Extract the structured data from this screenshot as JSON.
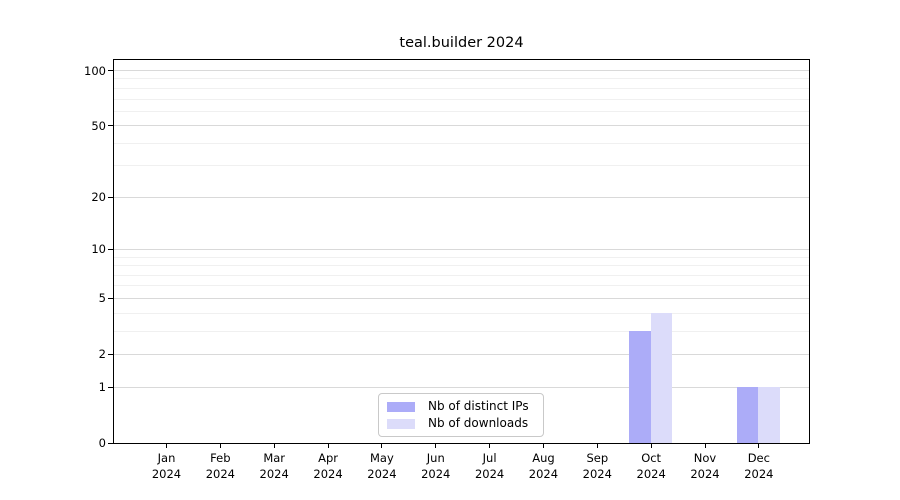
{
  "chart_data": {
    "type": "bar",
    "title": "teal.builder 2024",
    "categories": [
      "Jan 2024",
      "Feb 2024",
      "Mar 2024",
      "Apr 2024",
      "May 2024",
      "Jun 2024",
      "Jul 2024",
      "Aug 2024",
      "Sep 2024",
      "Oct 2024",
      "Nov 2024",
      "Dec 2024"
    ],
    "series": [
      {
        "name": "Nb of distinct IPs",
        "color": "#acacf8",
        "values": [
          0,
          0,
          0,
          0,
          0,
          0,
          0,
          0,
          0,
          3,
          0,
          1
        ]
      },
      {
        "name": "Nb of downloads",
        "color": "#dcdcfa",
        "values": [
          0,
          0,
          0,
          0,
          0,
          0,
          0,
          0,
          0,
          4,
          0,
          1
        ]
      }
    ],
    "xlabel": "",
    "ylabel": "",
    "yscale": "log1p",
    "ylim": [
      0,
      113
    ],
    "yticks": [
      0,
      1,
      2,
      5,
      10,
      20,
      50,
      100
    ],
    "minor_yticks": [
      3,
      4,
      6,
      7,
      8,
      9,
      30,
      40,
      60,
      70,
      80,
      90
    ],
    "grid": true,
    "legend_position": "lower center",
    "colors": {
      "axis": "#000000",
      "major_grid": "#d9d9d9",
      "minor_grid": "#f0f0f0",
      "background": "#ffffff"
    }
  }
}
